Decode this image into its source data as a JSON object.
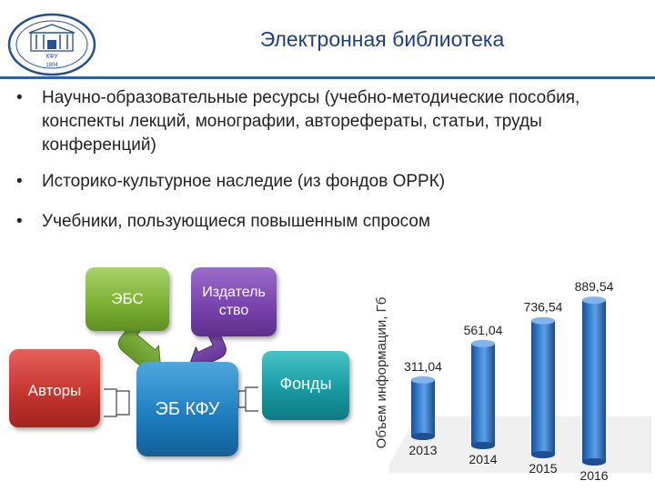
{
  "header": {
    "title": "Электронная библиотека",
    "logo_text": "КФУ",
    "logo_year": "1804"
  },
  "bullets": [
    "Научно-образовательные ресурсы (учебно-методические пособия, конспекты лекций, монографии, авторефераты, статьи, труды конференций)",
    "Историко-культурное наследие (из фондов ОРРК)",
    "Учебники, пользующиеся повышенным спросом"
  ],
  "bullet_symbol": "•",
  "diagram": {
    "ebs": "ЭБС",
    "izdatelstvo": "Издатель ство",
    "avtory": "Авторы",
    "eb_kfu": "ЭБ КФУ",
    "fondy": "Фонды"
  },
  "chart_data": {
    "type": "bar",
    "categories": [
      "2013",
      "2014",
      "2015",
      "2016"
    ],
    "values": [
      311.04,
      561.04,
      736.54,
      889.54
    ],
    "value_labels": [
      "311,04",
      "561,04",
      "736,54",
      "889,54"
    ],
    "ylabel": "Объем информации, Гб",
    "ylim": [
      0,
      950
    ],
    "grid": false,
    "bar_color": "#2d6fc0"
  }
}
